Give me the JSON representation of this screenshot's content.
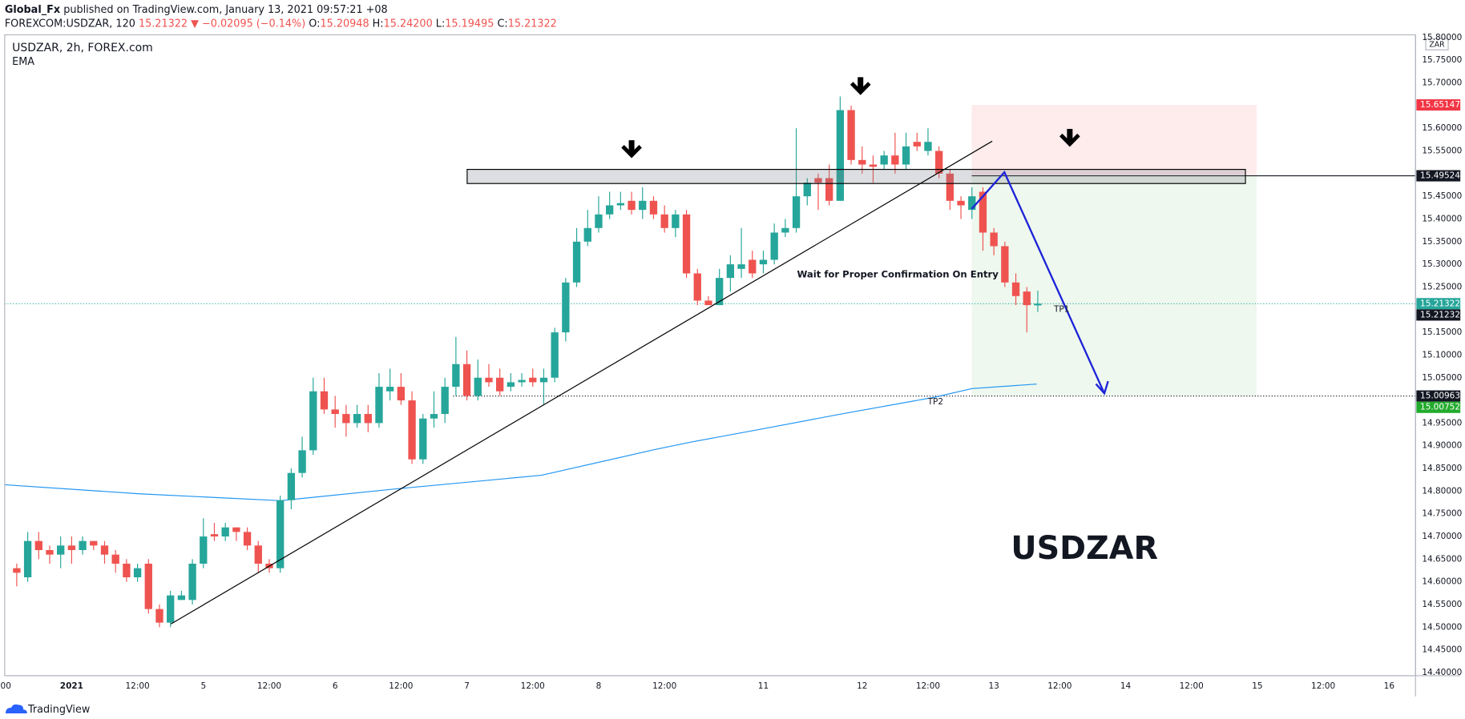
{
  "header": {
    "publisher": "Global_Fx",
    "published": " published on TradingView.com, January 13, 2021 09:57:21 +08",
    "symbol": "FOREXCOM:USDZAR, 120",
    "last": "15.21322",
    "change": "▼ −0.02095 (−0.14%)",
    "ohlc": [
      {
        "key": "O:",
        "value": "15.20948"
      },
      {
        "key": "H:",
        "value": "15.24200"
      },
      {
        "key": "L:",
        "value": "15.19495"
      },
      {
        "key": "C:",
        "value": "15.21322"
      }
    ]
  },
  "footer": {
    "logo": "TradingView"
  },
  "chart_data": {
    "type": "candlestick",
    "title": "USDZAR, 2h, FOREX.com",
    "currency": "ZAR",
    "up_color": "#26a69a",
    "down_color": "#ef5350",
    "grid": false,
    "open": [
      14.63,
      14.61,
      14.69,
      14.67,
      14.66,
      14.68,
      14.67,
      14.69,
      14.68,
      14.66,
      14.64,
      14.61,
      14.64,
      14.54,
      14.51,
      14.56,
      14.56,
      14.64,
      14.705,
      14.7,
      14.72,
      14.71,
      14.68,
      14.64,
      14.63,
      14.78,
      14.84,
      14.89,
      15.02,
      14.98,
      14.97,
      14.95,
      14.97,
      14.95,
      15.02,
      15.03,
      15.0,
      14.87,
      14.96,
      14.97,
      15.03,
      15.08,
      15.01,
      15.05,
      15.05,
      15.03,
      15.04,
      15.05,
      15.04,
      15.05,
      15.15,
      15.26,
      15.35,
      15.38,
      15.41,
      15.43,
      15.44,
      15.42,
      15.44,
      15.41,
      15.38,
      15.41,
      15.28,
      15.22,
      15.21,
      15.27,
      15.29,
      15.31,
      15.3,
      15.31,
      15.37,
      15.38,
      15.45,
      15.49,
      15.49,
      15.44,
      15.64,
      15.53,
      15.52,
      15.52,
      15.54,
      15.52,
      15.57,
      15.55,
      15.55,
      15.5,
      15.44,
      15.42,
      15.46,
      15.37,
      15.34,
      15.26,
      15.24,
      15.20948
    ],
    "high": [
      14.64,
      14.71,
      14.71,
      14.68,
      14.7,
      14.7,
      14.7,
      14.69,
      14.69,
      14.67,
      14.65,
      14.64,
      14.65,
      14.55,
      14.58,
      14.58,
      14.65,
      14.74,
      14.73,
      14.73,
      14.72,
      14.72,
      14.69,
      14.65,
      14.79,
      14.85,
      14.92,
      15.05,
      15.05,
      15.01,
      14.99,
      14.99,
      14.99,
      15.06,
      15.07,
      15.06,
      15.02,
      14.97,
      15.02,
      15.05,
      15.14,
      15.11,
      15.09,
      15.08,
      15.07,
      15.06,
      15.06,
      15.07,
      15.07,
      15.16,
      15.27,
      15.38,
      15.42,
      15.45,
      15.46,
      15.46,
      15.46,
      15.47,
      15.45,
      15.43,
      15.42,
      15.42,
      15.29,
      15.23,
      15.29,
      15.32,
      15.38,
      15.33,
      15.33,
      15.39,
      15.4,
      15.6,
      15.49,
      15.5,
      15.52,
      15.67,
      15.65,
      15.56,
      15.54,
      15.55,
      15.59,
      15.59,
      15.59,
      15.6,
      15.56,
      15.51,
      15.45,
      15.47,
      15.47,
      15.38,
      15.35,
      15.28,
      15.25,
      15.242
    ],
    "low": [
      14.59,
      14.6,
      14.65,
      14.64,
      14.63,
      14.64,
      14.66,
      14.67,
      14.64,
      14.62,
      14.6,
      14.6,
      14.53,
      14.5,
      14.5,
      14.56,
      14.55,
      14.63,
      14.69,
      14.69,
      14.69,
      14.67,
      14.62,
      14.62,
      14.62,
      14.76,
      14.83,
      14.88,
      14.97,
      14.94,
      14.92,
      14.94,
      14.93,
      14.94,
      15.0,
      14.99,
      14.86,
      14.86,
      14.94,
      14.95,
      15.01,
      15.0,
      15.0,
      15.03,
      15.01,
      15.02,
      15.03,
      15.03,
      14.99,
      15.04,
      15.13,
      15.25,
      15.34,
      15.37,
      15.4,
      15.42,
      15.41,
      15.4,
      15.4,
      15.37,
      15.36,
      15.27,
      15.21,
      15.21,
      15.21,
      15.24,
      15.27,
      15.27,
      15.28,
      15.3,
      15.36,
      15.37,
      15.43,
      15.42,
      15.43,
      15.44,
      15.52,
      15.5,
      15.48,
      15.51,
      15.5,
      15.51,
      15.55,
      15.54,
      15.49,
      15.42,
      15.4,
      15.4,
      15.33,
      15.32,
      15.25,
      15.21,
      15.15,
      15.19495
    ],
    "close": [
      14.62,
      14.69,
      14.67,
      14.66,
      14.68,
      14.67,
      14.69,
      14.68,
      14.66,
      14.64,
      14.61,
      14.63,
      14.54,
      14.51,
      14.57,
      14.57,
      14.64,
      14.7,
      14.7,
      14.72,
      14.71,
      14.68,
      14.64,
      14.63,
      14.78,
      14.84,
      14.89,
      15.02,
      14.98,
      14.97,
      14.95,
      14.97,
      14.95,
      15.03,
      15.03,
      15.0,
      14.87,
      14.96,
      14.97,
      15.03,
      15.08,
      15.01,
      15.05,
      15.04,
      15.02,
      15.04,
      15.045,
      15.04,
      15.05,
      15.15,
      15.26,
      15.35,
      15.38,
      15.41,
      15.43,
      15.435,
      15.42,
      15.44,
      15.41,
      15.38,
      15.41,
      15.28,
      15.22,
      15.21,
      15.27,
      15.3,
      15.3,
      15.28,
      15.31,
      15.37,
      15.38,
      15.45,
      15.48,
      15.48,
      15.44,
      15.64,
      15.53,
      15.52,
      15.515,
      15.54,
      15.52,
      15.56,
      15.56,
      15.57,
      15.5,
      15.44,
      15.43,
      15.45,
      15.37,
      15.34,
      15.26,
      15.23,
      15.21,
      15.21322
    ],
    "ema": {
      "name": "EMA",
      "color": "#2196f3",
      "x": [
        -1.1,
        11.2,
        24,
        34.2,
        47.8,
        58,
        61.4,
        68.3,
        75.1,
        83.6,
        87,
        92.9
      ],
      "values": [
        14.814,
        14.794,
        14.779,
        14.804,
        14.835,
        14.891,
        14.908,
        14.939,
        14.97,
        15.007,
        15.026,
        15.036
      ]
    },
    "xlim": [
      -1.1,
      127.4
    ],
    "xticks": [
      {
        "value": -1,
        "label": "00"
      },
      {
        "value": 5,
        "label": "2021"
      },
      {
        "value": 11,
        "label": "12:00"
      },
      {
        "value": 17,
        "label": "5"
      },
      {
        "value": 23,
        "label": "12:00"
      },
      {
        "value": 29,
        "label": "6"
      },
      {
        "value": 35,
        "label": "12:00"
      },
      {
        "value": 41,
        "label": "7"
      },
      {
        "value": 47,
        "label": "12:00"
      },
      {
        "value": 53,
        "label": "8"
      },
      {
        "value": 59,
        "label": "12:00"
      },
      {
        "value": 68,
        "label": "11"
      },
      {
        "value": 77,
        "label": "12"
      },
      {
        "value": 83,
        "label": "12:00"
      },
      {
        "value": 89,
        "label": "13"
      },
      {
        "value": 95,
        "label": "12:00"
      },
      {
        "value": 101,
        "label": "14"
      },
      {
        "value": 107,
        "label": "12:00"
      },
      {
        "value": 113,
        "label": "15"
      },
      {
        "value": 119,
        "label": "12:00"
      },
      {
        "value": 125,
        "label": "16"
      }
    ],
    "ylim": [
      14.393,
      15.806
    ],
    "yticks": [
      {
        "value": 15.8,
        "label": "15.80000"
      },
      {
        "value": 15.75,
        "label": "15.75000"
      },
      {
        "value": 15.7,
        "label": "15.70000"
      },
      {
        "value": 15.6,
        "label": "15.60000"
      },
      {
        "value": 15.55,
        "label": "15.55000"
      },
      {
        "value": 15.45,
        "label": "15.45000"
      },
      {
        "value": 15.4,
        "label": "15.40000"
      },
      {
        "value": 15.35,
        "label": "15.35000"
      },
      {
        "value": 15.3,
        "label": "15.30000"
      },
      {
        "value": 15.25,
        "label": "15.25000"
      },
      {
        "value": 15.15,
        "label": "15.15000"
      },
      {
        "value": 15.1,
        "label": "15.10000"
      },
      {
        "value": 15.05,
        "label": "15.05000"
      },
      {
        "value": 14.95,
        "label": "14.95000"
      },
      {
        "value": 14.9,
        "label": "14.90000"
      },
      {
        "value": 14.85,
        "label": "14.85000"
      },
      {
        "value": 14.8,
        "label": "14.80000"
      },
      {
        "value": 14.75,
        "label": "14.75000"
      },
      {
        "value": 14.7,
        "label": "14.70000"
      },
      {
        "value": 14.65,
        "label": "14.65000"
      },
      {
        "value": 14.6,
        "label": "14.60000"
      },
      {
        "value": 14.55,
        "label": "14.55000"
      },
      {
        "value": 14.5,
        "label": "14.50000"
      },
      {
        "value": 14.45,
        "label": "14.45000"
      },
      {
        "value": 14.4,
        "label": "14.40000"
      }
    ],
    "price_labels": [
      {
        "value": 15.65147,
        "label": "15.65147",
        "color": "#f23645"
      },
      {
        "value": 15.49524,
        "label": "15.49524",
        "color": "#131722"
      },
      {
        "value": 15.21322,
        "label": "15.21322",
        "color": "#26a69a"
      },
      {
        "value": 15.21232,
        "label": "15.21232",
        "color": "#131722"
      },
      {
        "value": 15.00963,
        "label": "15.00963",
        "color": "#131722"
      },
      {
        "value": 15.00752,
        "label": "15.00752",
        "color": "#22ab2c"
      }
    ],
    "annotations": [
      "Wait for Proper Confirmation On Entry",
      "TP1",
      "TP2"
    ],
    "watermark": "USDZAR"
  }
}
